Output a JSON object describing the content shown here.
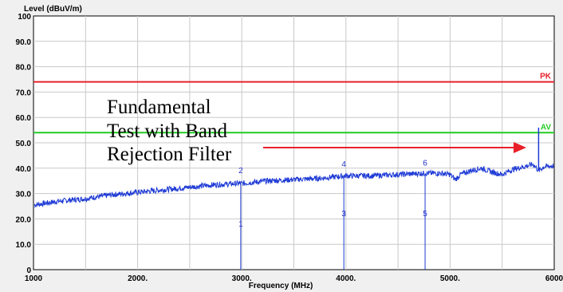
{
  "chart_data": {
    "type": "line",
    "ylabel": "Level (dBuV/m)",
    "xlabel": "Frequency (MHz)",
    "xlim": [
      1000,
      6000
    ],
    "ylim": [
      0,
      100
    ],
    "x_ticks": [
      "1000",
      "2000.",
      "3000.",
      "4000.",
      "5000.",
      "6000"
    ],
    "y_ticks": [
      "0",
      "10.0",
      "20.0",
      "30.0",
      "40.0",
      "50.0",
      "60.0",
      "70.0",
      "80.0",
      "90.0",
      "100"
    ],
    "grid": true,
    "limits": [
      {
        "name": "PK",
        "y": 74,
        "color": "#e8202a"
      },
      {
        "name": "AV",
        "y": 54,
        "color": "#22cc22"
      }
    ],
    "trace": {
      "color": "#1e3ad6",
      "x": [
        1000,
        1250,
        1500,
        1750,
        2000,
        2250,
        2500,
        2750,
        3000,
        3250,
        3500,
        3750,
        4000,
        4250,
        4500,
        4750,
        4900,
        5000,
        5050,
        5100,
        5200,
        5300,
        5400,
        5500,
        5600,
        5700,
        5800,
        5850,
        5900,
        6000
      ],
      "y": [
        25.5,
        27,
        28,
        29.5,
        30.5,
        31.5,
        32.5,
        33.5,
        34,
        35,
        35.5,
        36,
        37,
        37,
        37.5,
        38,
        38,
        37.5,
        35.5,
        37.5,
        39,
        40,
        38.5,
        37.5,
        39.5,
        40.5,
        41.5,
        39,
        40.5,
        41
      ]
    },
    "spike": {
      "x": 5850,
      "y": 56
    },
    "markers": [
      {
        "label": "1",
        "x": 2990,
        "y": 0,
        "label_y": 17
      },
      {
        "label": "2",
        "x": 2990,
        "y": 34.5,
        "label_y": 38
      },
      {
        "label": "3",
        "x": 3980,
        "y": 0,
        "label_y": 21
      },
      {
        "label": "4",
        "x": 3980,
        "y": 37,
        "label_y": 40.5
      },
      {
        "label": "5",
        "x": 4760,
        "y": 0,
        "label_y": 21
      },
      {
        "label": "6",
        "x": 4760,
        "y": 38,
        "label_y": 41
      }
    ],
    "annotation": {
      "lines": [
        "Fundamental",
        "Test with Band",
        "Rejection Filter"
      ],
      "arrow_color": "#e8202a"
    }
  }
}
